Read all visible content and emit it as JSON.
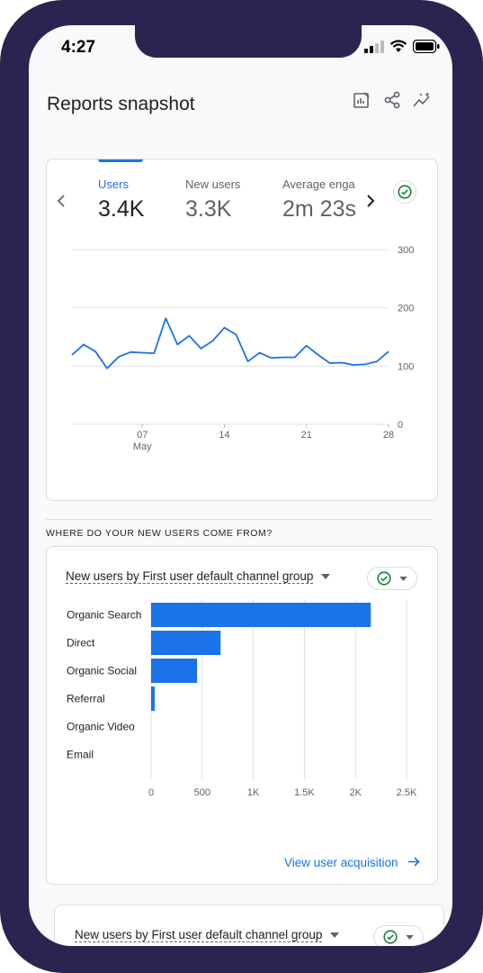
{
  "status_bar": {
    "time": "4:27"
  },
  "header": {
    "title": "Reports snapshot"
  },
  "metrics": [
    {
      "label": "Users",
      "value": "3.4K"
    },
    {
      "label": "New users",
      "value": "3.3K"
    },
    {
      "label": "Average enga",
      "value": "2m 23s"
    }
  ],
  "line_chart": {
    "y_ticks": [
      "300",
      "200",
      "100",
      "0"
    ],
    "x_ticks": [
      {
        "day": "07",
        "month": "May"
      },
      {
        "day": "14",
        "month": ""
      },
      {
        "day": "21",
        "month": ""
      },
      {
        "day": "28",
        "month": ""
      }
    ]
  },
  "section_heading": "WHERE DO YOUR NEW USERS COME FROM?",
  "bar_card": {
    "title": "New users by First user default channel group",
    "link": "View user acquisition"
  },
  "next_card": {
    "title": "New users by First user default channel group"
  },
  "colors": {
    "accent": "#1a73e8",
    "check_green": "#188038"
  },
  "chart_data": [
    {
      "type": "line",
      "title": "",
      "xlabel": "",
      "ylabel": "",
      "ylim": [
        0,
        300
      ],
      "x_tick_labels": [
        "07 May",
        "14",
        "21",
        "28"
      ],
      "series": [
        {
          "name": "Users",
          "values": [
            119,
            137,
            125,
            96,
            116,
            124,
            123,
            122,
            182,
            137,
            152,
            130,
            143,
            166,
            154,
            108,
            123,
            114,
            115,
            115,
            135,
            119,
            105,
            106,
            102,
            103,
            108,
            125
          ]
        }
      ],
      "grid": true
    },
    {
      "type": "bar",
      "orientation": "horizontal",
      "title": "New users by First user default channel group",
      "categories": [
        "Organic Search",
        "Direct",
        "Organic Social",
        "Referral",
        "Organic Video",
        "Email"
      ],
      "values": [
        2150,
        680,
        450,
        35,
        0,
        0
      ],
      "xlim": [
        0,
        2500
      ],
      "x_tick_labels": [
        "0",
        "500",
        "1K",
        "1.5K",
        "2K",
        "2.5K"
      ],
      "grid": true
    }
  ]
}
